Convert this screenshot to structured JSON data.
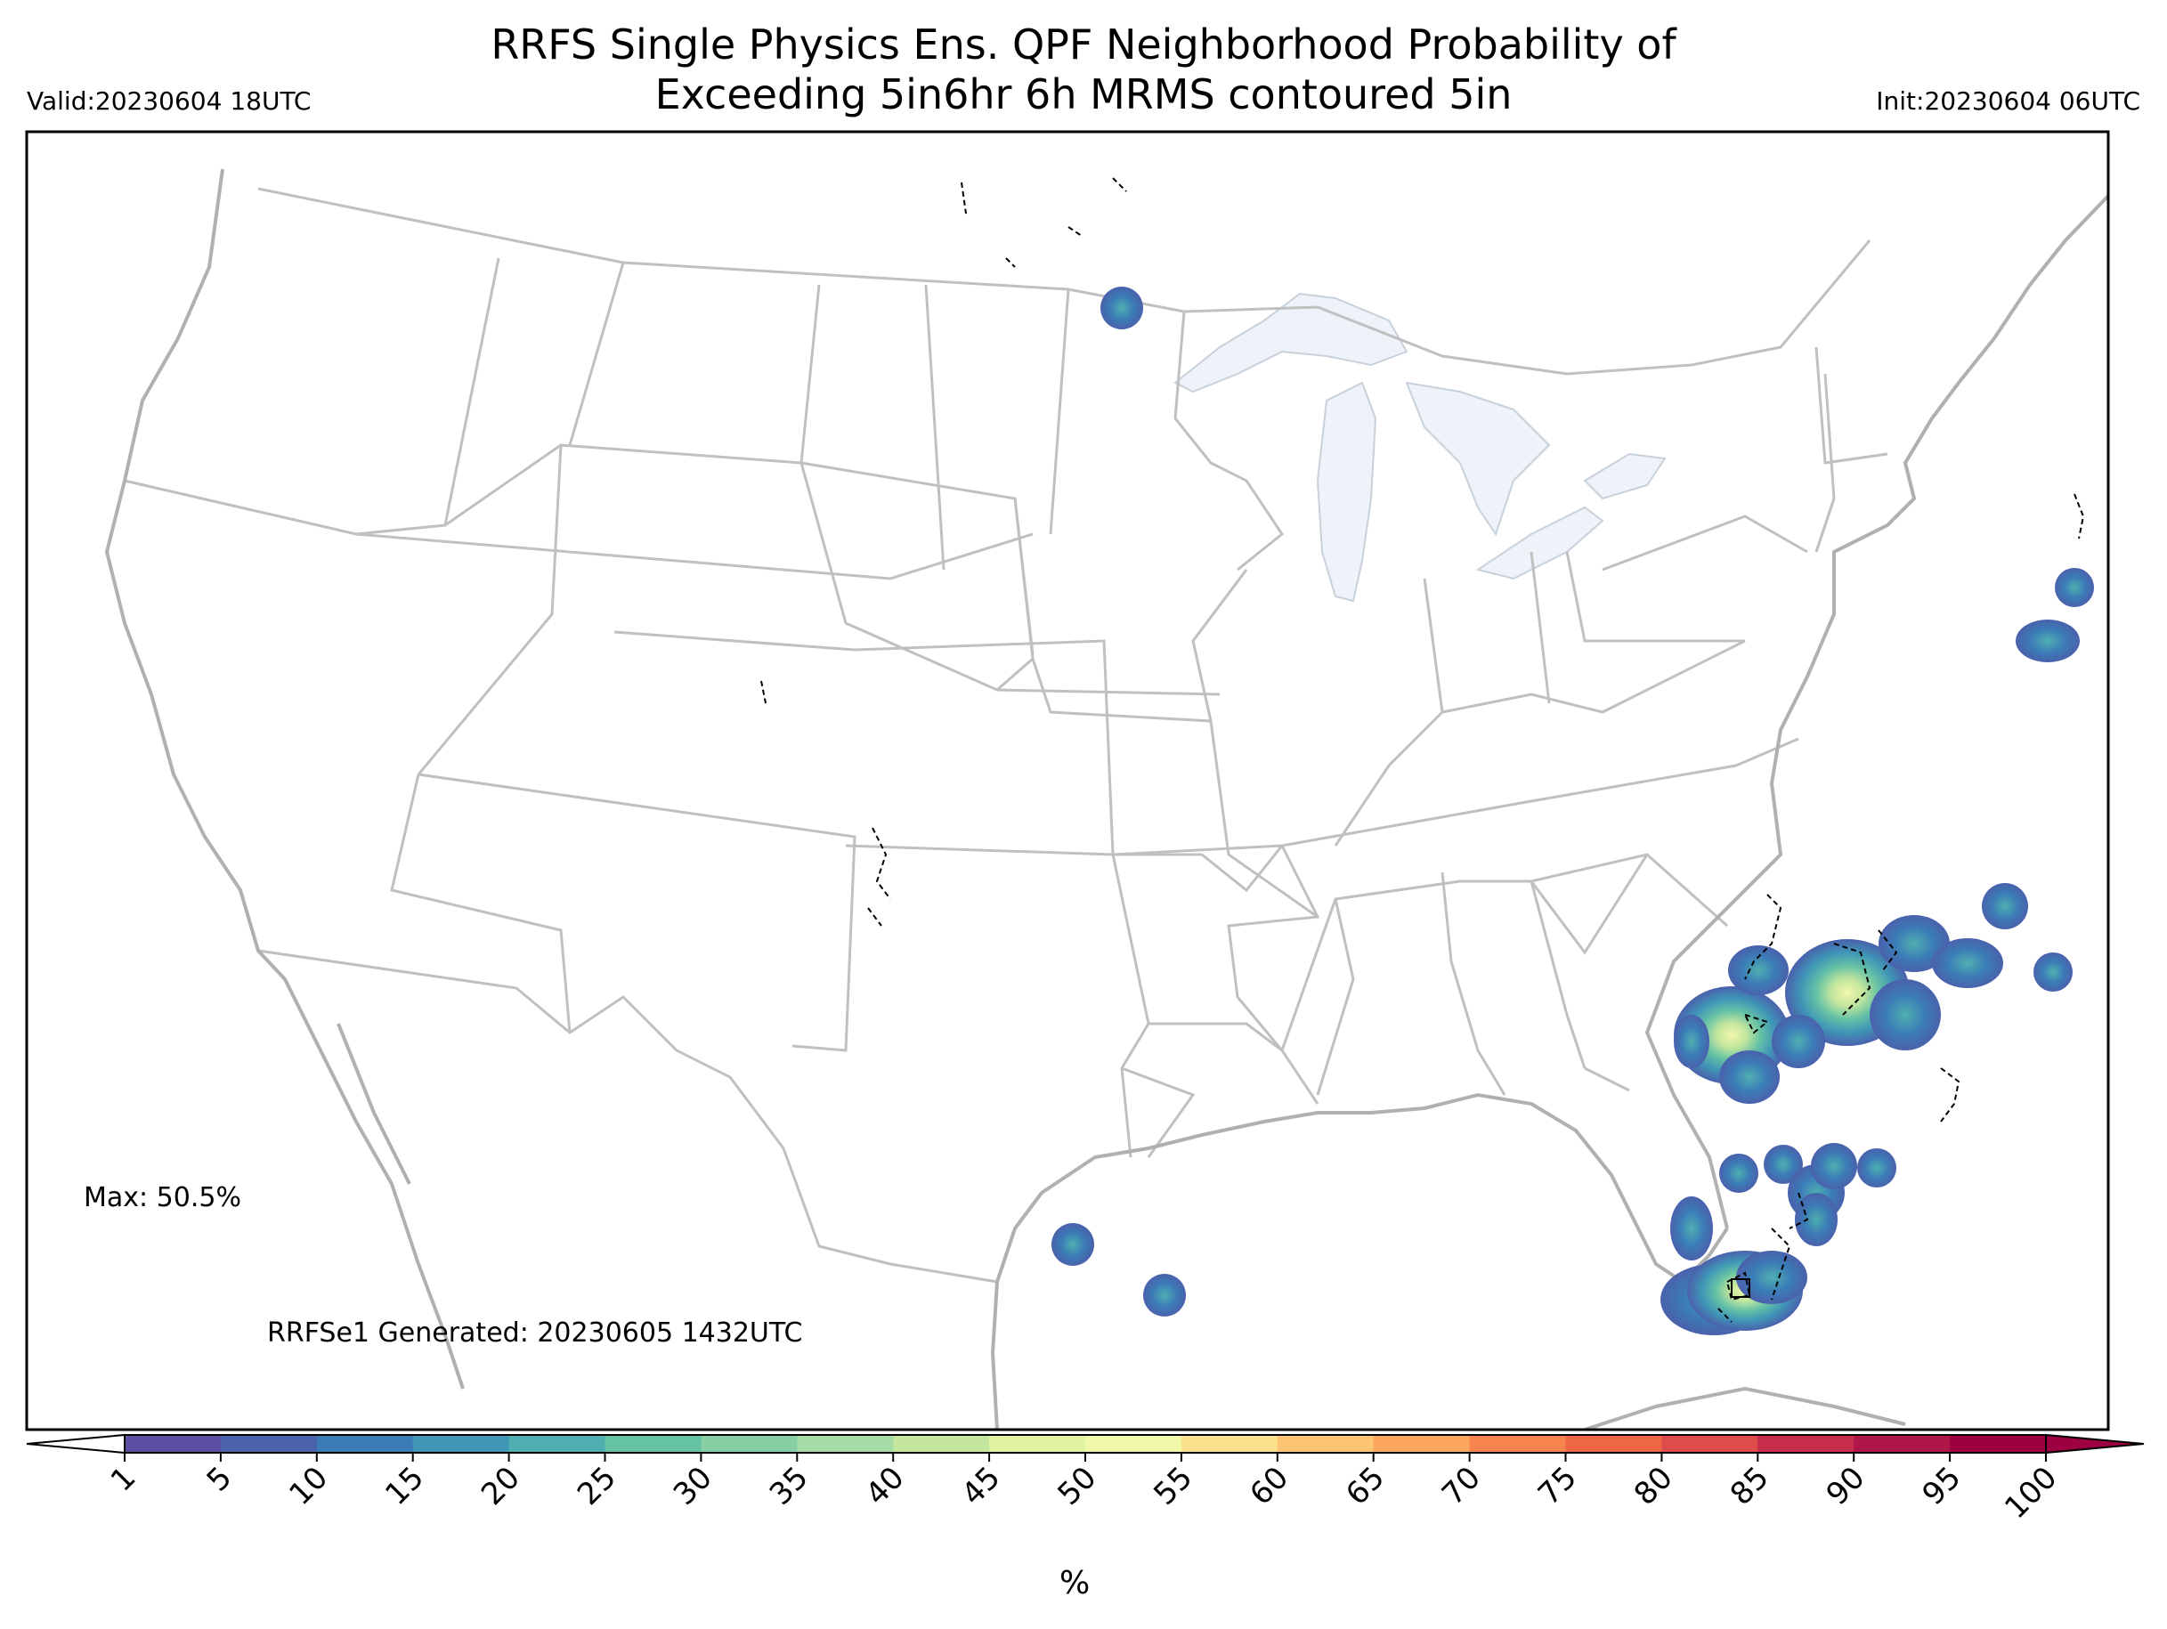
{
  "title_line1": "RRFS Single Physics Ens. QPF Neighborhood Probability of",
  "title_line2": "Exceeding 5in6hr 6h MRMS contoured 5in",
  "valid_label": "Valid:20230604 18UTC",
  "init_label": "Init:20230604 06UTC",
  "max_label": "Max: 50.5%",
  "generated_label": "RRFSe1 Generated: 20230605 1432UTC",
  "colorbar": {
    "unit": "%",
    "ticks": [
      "1",
      "5",
      "10",
      "15",
      "20",
      "25",
      "30",
      "35",
      "40",
      "45",
      "50",
      "55",
      "60",
      "65",
      "70",
      "75",
      "80",
      "85",
      "90",
      "95",
      "100"
    ],
    "colors": [
      "#5e4fa2",
      "#4a61ac",
      "#3b7cb7",
      "#3f96b7",
      "#4fafb0",
      "#66c2a5",
      "#86cfa5",
      "#a5dba4",
      "#c4e69e",
      "#e0f3a0",
      "#f0f8aa",
      "#fde08b",
      "#fdc473",
      "#fca55d",
      "#f7834d",
      "#ee6644",
      "#de4c4b",
      "#c82c4c",
      "#b01749",
      "#9e0142"
    ],
    "under_color": "#ffffff",
    "over_color": "#9e0142"
  },
  "map": {
    "lake_color": "#eef3fa",
    "boundary_color": "#c0c0c0",
    "coast_color": "#b0b0b0"
  }
}
